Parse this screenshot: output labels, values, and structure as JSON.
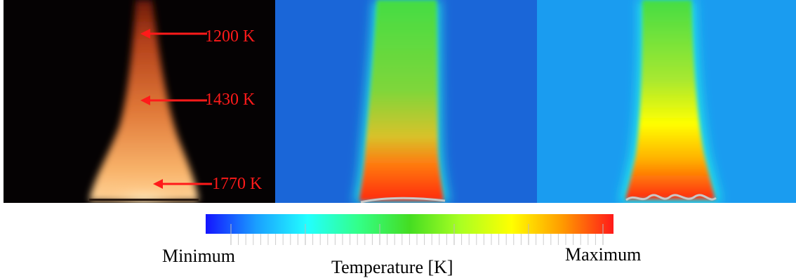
{
  "photo_labels": [
    {
      "text": "1200 K"
    },
    {
      "text": "1430 K"
    },
    {
      "text": "1770 K"
    }
  ],
  "colorbar": {
    "min_label": "Minimum",
    "max_label": "Maximum",
    "title": "Temperature [K]",
    "colors": [
      "#1414ff",
      "#1aa0ff",
      "#22ffff",
      "#33ff88",
      "#44dd22",
      "#aaff22",
      "#ffff00",
      "#ff9a00",
      "#ff1a1a"
    ]
  },
  "colors": {
    "label_red": "#ff1a1a",
    "background_blue": "#1a66d8",
    "flame_orange": "#f7a040"
  }
}
